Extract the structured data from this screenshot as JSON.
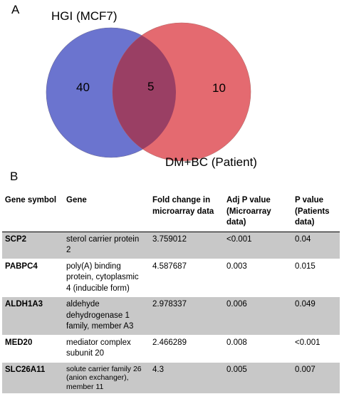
{
  "panel_a": {
    "label": "A",
    "set1_name": "HGI (MCF7)",
    "set2_name": "DM+BC (Patient)",
    "only_set1": "40",
    "overlap": "5",
    "only_set2": "10",
    "colors": {
      "set1": "#6b74cf",
      "set2": "#e46a70",
      "overlap": "#9a3f64"
    }
  },
  "panel_b": {
    "label": "B",
    "headers": {
      "symbol": "Gene symbol",
      "gene": "Gene",
      "fold": "Fold change in microarray data",
      "adj_p": "Adj P value (Microarray data)",
      "p": "P value (Patients data)"
    },
    "rows": [
      {
        "symbol": "SCP2",
        "gene": "sterol carrier protein 2",
        "fold": "3.759012",
        "adj_p": "<0.001",
        "p": "0.04"
      },
      {
        "symbol": "PABPC4",
        "gene": "poly(A) binding protein, cytoplasmic 4 (inducible form)",
        "fold": "4.587687",
        "adj_p": "0.003",
        "p": "0.015"
      },
      {
        "symbol": "ALDH1A3",
        "gene": "aldehyde dehydrogenase 1 family, member A3",
        "fold": "2.978337",
        "adj_p": "0.006",
        "p": "0.049"
      },
      {
        "symbol": "MED20",
        "gene": "mediator complex subunit 20",
        "fold": "2.466289",
        "adj_p": "0.008",
        "p": "<0.001"
      },
      {
        "symbol": "SLC26A11",
        "gene": "solute carrier family 26 (anion exchanger), member 11",
        "fold": "4.3",
        "adj_p": "0.005",
        "p": "0.007"
      }
    ]
  }
}
